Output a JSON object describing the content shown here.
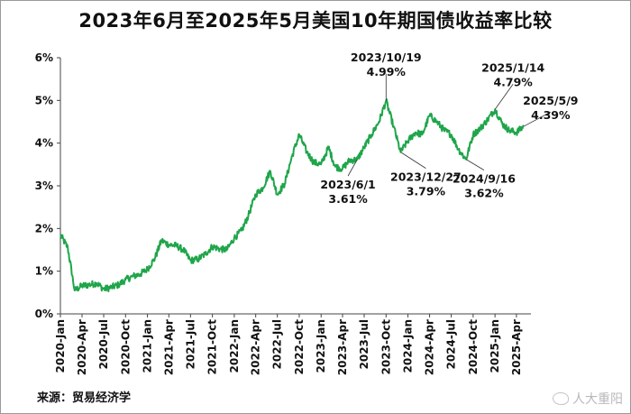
{
  "chart_data": {
    "type": "line",
    "title": "2023年6月至2025年5月美国10年期国债收益率比较",
    "ylim": [
      0,
      6
    ],
    "yticks": [
      "0%",
      "1%",
      "2%",
      "3%",
      "4%",
      "5%",
      "6%"
    ],
    "xticks": [
      "2020-Jan",
      "2020-Apr",
      "2020-Jul",
      "2020-Oct",
      "2021-Jan",
      "2021-Apr",
      "2021-Jul",
      "2021-Oct",
      "2022-Jan",
      "2022-Apr",
      "2022-Jul",
      "2022-Oct",
      "2023-Jan",
      "2023-Apr",
      "2023-Jul",
      "2023-Oct",
      "2024-Jan",
      "2024-Apr",
      "2024-Jul",
      "2024-Oct",
      "2025-Jan",
      "2025-Apr"
    ],
    "grid": false,
    "line_color": "#1fa54a",
    "series": [
      {
        "x": [
          "2020-01",
          "2020-02",
          "2020-03",
          "2020-04",
          "2020-05",
          "2020-06",
          "2020-07",
          "2020-08",
          "2020-09",
          "2020-10",
          "2020-11",
          "2020-12",
          "2021-01",
          "2021-02",
          "2021-03",
          "2021-04",
          "2021-05",
          "2021-06",
          "2021-07",
          "2021-08",
          "2021-09",
          "2021-10",
          "2021-11",
          "2021-12",
          "2022-01",
          "2022-02",
          "2022-03",
          "2022-04",
          "2022-05",
          "2022-06",
          "2022-07",
          "2022-08",
          "2022-09",
          "2022-10",
          "2022-11",
          "2022-12",
          "2023-01",
          "2023-02",
          "2023-03",
          "2023-04",
          "2023-05",
          "2023-06",
          "2023-07",
          "2023-08",
          "2023-09",
          "2023-10",
          "2023-11",
          "2023-12",
          "2024-01",
          "2024-02",
          "2024-03",
          "2024-04",
          "2024-05",
          "2024-06",
          "2024-07",
          "2024-08",
          "2024-09",
          "2024-10",
          "2024-11",
          "2024-12",
          "2025-01",
          "2025-02",
          "2025-03",
          "2025-04",
          "2025-05"
        ],
        "values": [
          1.85,
          1.55,
          0.55,
          0.66,
          0.68,
          0.72,
          0.58,
          0.62,
          0.68,
          0.8,
          0.88,
          0.93,
          1.05,
          1.3,
          1.72,
          1.62,
          1.6,
          1.5,
          1.25,
          1.28,
          1.4,
          1.58,
          1.52,
          1.5,
          1.78,
          1.95,
          2.3,
          2.8,
          2.95,
          3.35,
          2.8,
          3.05,
          3.7,
          4.2,
          3.8,
          3.55,
          3.5,
          3.9,
          3.45,
          3.4,
          3.6,
          3.61,
          3.9,
          4.2,
          4.5,
          4.99,
          4.4,
          3.79,
          4.05,
          4.25,
          4.2,
          4.65,
          4.5,
          4.3,
          4.2,
          3.85,
          3.62,
          4.2,
          4.35,
          4.55,
          4.79,
          4.45,
          4.3,
          4.25,
          4.39
        ]
      }
    ],
    "annotations": [
      {
        "date": "2023-06",
        "label": "2023/6/1",
        "value": "3.61%"
      },
      {
        "date": "2023-10",
        "label": "2023/10/19",
        "value": "4.99%"
      },
      {
        "date": "2023-12",
        "label": "2023/12/27",
        "value": "3.79%"
      },
      {
        "date": "2024-09",
        "label": "2024/9/16",
        "value": "3.62%"
      },
      {
        "date": "2025-01",
        "label": "2025/1/14",
        "value": "4.79%"
      },
      {
        "date": "2025-05",
        "label": "2025/5/9",
        "value": "4.39%"
      }
    ]
  },
  "source": "来源：贸易经济学",
  "watermark": "人大重阳"
}
